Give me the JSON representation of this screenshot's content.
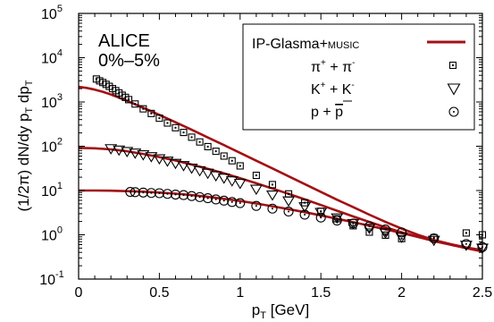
{
  "chart_data": {
    "type": "scatter",
    "xlabel": "p",
    "xlabel_sub": "T",
    "xlabel_unit": " [GeV]",
    "ylabel_parts": [
      "(1/2π) dN/dy p",
      "T",
      " dp",
      "T"
    ],
    "yscale": "log",
    "xlim": [
      0,
      2.5
    ],
    "ylim": [
      0.1,
      100000
    ],
    "xticks": [
      0,
      0.5,
      1,
      1.5,
      2,
      2.5
    ],
    "xtick_labels": [
      "0",
      "0.5",
      "1",
      "1.5",
      "2",
      "2.5"
    ],
    "ytick_exponents": [
      -1,
      0,
      1,
      2,
      3,
      4,
      5
    ],
    "ytick_base": "10",
    "annotation_lines": [
      "ALICE",
      "0%–5%"
    ],
    "legend": {
      "placement": "top-right",
      "model_label": "IP-Glasma+",
      "model_label_smallcaps": "MUSIC",
      "pion_label": [
        "π",
        "+",
        " + π",
        "-"
      ],
      "kaon_label": [
        "K",
        "+",
        " + K",
        "-"
      ],
      "proton_label": [
        "p + ",
        "p"
      ]
    },
    "model_color": "#a31014",
    "series": [
      {
        "name": "π⁺ + π⁻",
        "marker": "square",
        "x": [
          0.11,
          0.13,
          0.15,
          0.17,
          0.19,
          0.21,
          0.23,
          0.25,
          0.27,
          0.29,
          0.31,
          0.35,
          0.4,
          0.45,
          0.5,
          0.55,
          0.6,
          0.65,
          0.7,
          0.75,
          0.8,
          0.85,
          0.9,
          0.95,
          1.0,
          1.1,
          1.2,
          1.3,
          1.4,
          1.5,
          1.6,
          1.7,
          1.8,
          1.9,
          2.0,
          2.2,
          2.4,
          2.5
        ],
        "y": [
          3300,
          3000,
          2750,
          2500,
          2250,
          2000,
          1800,
          1600,
          1420,
          1270,
          1130,
          900,
          700,
          550,
          430,
          335,
          262,
          205,
          160,
          125,
          98,
          77,
          60,
          47,
          36,
          22,
          13.6,
          8.4,
          5.3,
          3.4,
          2.3,
          1.6,
          1.15,
          0.98,
          0.82,
          0.86,
          1.1,
          1.0
        ]
      },
      {
        "name": "K⁺ + K⁻",
        "marker": "triangle-down",
        "x": [
          0.2,
          0.25,
          0.3,
          0.35,
          0.4,
          0.45,
          0.5,
          0.55,
          0.6,
          0.65,
          0.7,
          0.75,
          0.8,
          0.85,
          0.9,
          0.95,
          1.0,
          1.1,
          1.2,
          1.3,
          1.4,
          1.5,
          1.6,
          1.7,
          1.8,
          1.9,
          2.0,
          2.2,
          2.4,
          2.5
        ],
        "y": [
          88,
          82,
          76,
          70,
          64,
          58,
          52,
          46,
          41,
          36.5,
          32,
          28,
          24.5,
          21.5,
          19,
          16.5,
          14.5,
          10.7,
          7.9,
          5.8,
          4.3,
          3.2,
          2.4,
          1.8,
          1.4,
          1.1,
          0.88,
          0.75,
          0.58,
          0.5
        ]
      },
      {
        "name": "p + p̄",
        "marker": "circle",
        "x": [
          0.32,
          0.35,
          0.4,
          0.45,
          0.5,
          0.55,
          0.6,
          0.65,
          0.7,
          0.75,
          0.8,
          0.85,
          0.9,
          0.95,
          1.0,
          1.1,
          1.2,
          1.3,
          1.4,
          1.5,
          1.6,
          1.7,
          1.8,
          1.9,
          2.0,
          2.2,
          2.4,
          2.5
        ],
        "y": [
          9.3,
          9.2,
          9.0,
          8.8,
          8.7,
          8.4,
          8.1,
          7.9,
          7.5,
          7.1,
          6.7,
          6.3,
          5.9,
          5.5,
          5.2,
          4.5,
          3.9,
          3.35,
          2.85,
          2.45,
          2.1,
          1.8,
          1.55,
          1.32,
          1.13,
          0.83,
          0.62,
          0.53
        ]
      }
    ],
    "model_curves": [
      {
        "name": "pion model",
        "x": [
          0.0,
          0.05,
          0.1,
          0.15,
          0.2,
          0.25,
          0.3,
          0.4,
          0.5,
          0.6,
          0.7,
          0.8,
          0.9,
          1.0,
          1.1,
          1.2,
          1.3,
          1.4,
          1.5,
          1.6,
          1.7,
          1.8,
          1.9,
          2.0,
          2.1,
          2.2,
          2.3,
          2.4,
          2.5
        ],
        "y": [
          2200,
          2080,
          1900,
          1700,
          1470,
          1250,
          1060,
          740,
          510,
          348,
          235,
          158,
          106,
          71,
          47,
          31.5,
          21,
          14,
          9.3,
          6.2,
          4.2,
          2.85,
          1.95,
          1.38,
          1.0,
          0.76,
          0.62,
          0.52,
          0.45
        ]
      },
      {
        "name": "kaon model",
        "x": [
          0.0,
          0.1,
          0.2,
          0.3,
          0.4,
          0.5,
          0.6,
          0.7,
          0.8,
          0.9,
          1.0,
          1.1,
          1.2,
          1.3,
          1.4,
          1.5,
          1.6,
          1.7,
          1.8,
          1.9,
          2.0,
          2.1,
          2.2,
          2.3,
          2.4,
          2.5
        ],
        "y": [
          92,
          90,
          85,
          77,
          67,
          57,
          47.5,
          38.5,
          31,
          24.5,
          19,
          14.6,
          11.1,
          8.4,
          6.3,
          4.7,
          3.5,
          2.6,
          1.95,
          1.48,
          1.14,
          0.9,
          0.72,
          0.6,
          0.5,
          0.42
        ]
      },
      {
        "name": "proton model",
        "x": [
          0.0,
          0.1,
          0.2,
          0.3,
          0.4,
          0.5,
          0.6,
          0.7,
          0.8,
          0.9,
          1.0,
          1.1,
          1.2,
          1.3,
          1.4,
          1.5,
          1.6,
          1.7,
          1.8,
          1.9,
          2.0,
          2.1,
          2.2,
          2.3,
          2.4,
          2.5
        ],
        "y": [
          10.0,
          10.0,
          9.9,
          9.7,
          9.4,
          9.0,
          8.5,
          7.9,
          7.2,
          6.5,
          5.8,
          5.1,
          4.4,
          3.8,
          3.25,
          2.75,
          2.3,
          1.93,
          1.6,
          1.33,
          1.1,
          0.9,
          0.74,
          0.61,
          0.5,
          0.42
        ]
      }
    ]
  }
}
